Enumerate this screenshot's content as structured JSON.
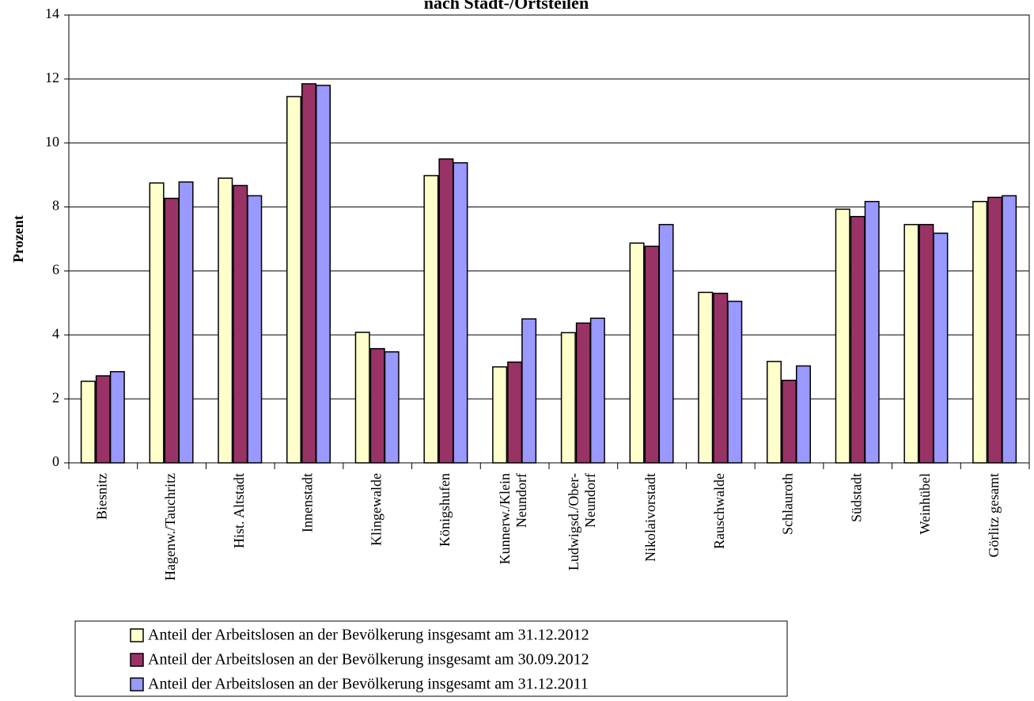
{
  "chart_data": {
    "type": "bar",
    "title": "nach Stadt-/Ortsteilen",
    "ylabel": "Prozent",
    "categories": [
      "Biesnitz",
      "Hagenw./Tauchritz",
      "Hist. Altstadt",
      "Innenstadt",
      "Klingewalde",
      "Königshufen",
      "Kunnerw./Klein\nNeundorf",
      "Ludwigsd./Ober-\nNeundorf",
      "Nikolaivorstadt",
      "Rauschwalde",
      "Schlauroth",
      "Südstadt",
      "Weinhübel",
      "Görlitz gesamt"
    ],
    "series": [
      {
        "name": "Anteil der Arbeitslosen an der Bevölkerung insgesamt am 31.12.2012",
        "color": "#ffffcc",
        "values": [
          2.55,
          8.75,
          8.9,
          11.45,
          4.08,
          8.98,
          3.0,
          4.07,
          6.87,
          5.33,
          3.17,
          7.93,
          7.45,
          8.17
        ]
      },
      {
        "name": "Anteil der Arbeitslosen an der Bevölkerung insgesamt am 30.09.2012",
        "color": "#993366",
        "values": [
          2.72,
          8.27,
          8.67,
          11.85,
          3.57,
          9.5,
          3.15,
          4.37,
          6.77,
          5.3,
          2.58,
          7.7,
          7.45,
          8.3
        ]
      },
      {
        "name": "Anteil der Arbeitslosen an der Bevölkerung insgesamt am 31.12.2011",
        "color": "#9999ff",
        "values": [
          2.85,
          8.78,
          8.35,
          11.8,
          3.47,
          9.38,
          4.5,
          4.52,
          7.45,
          5.05,
          3.03,
          8.17,
          7.18,
          8.35
        ]
      }
    ],
    "ylim": [
      0,
      14
    ],
    "yticks": [
      0,
      2,
      4,
      6,
      8,
      10,
      12,
      14
    ],
    "grid": true
  }
}
